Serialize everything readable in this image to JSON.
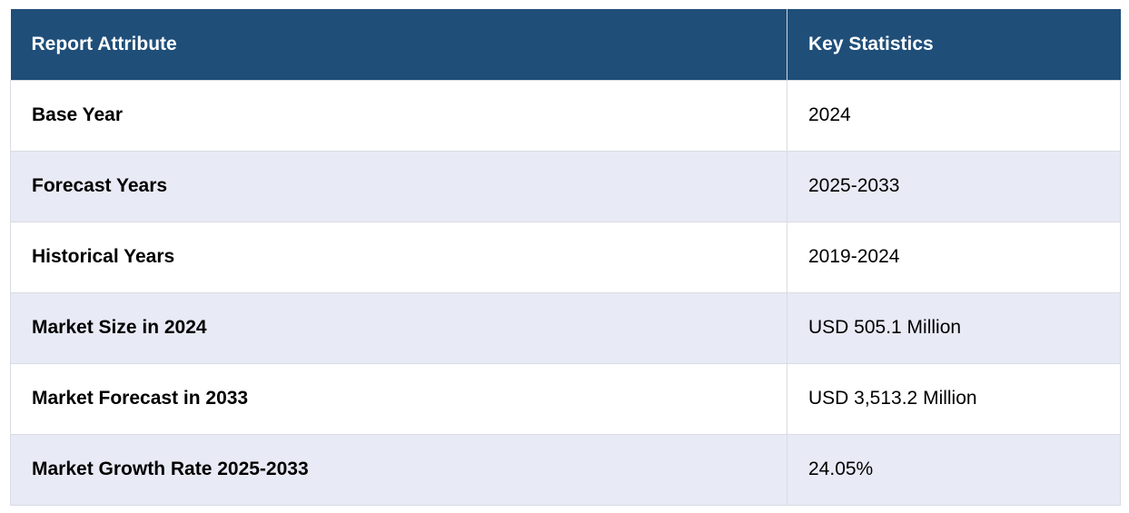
{
  "table": {
    "headers": {
      "attribute": "Report Attribute",
      "statistics": "Key Statistics"
    },
    "rows": [
      {
        "attribute": "Base Year",
        "value": "2024"
      },
      {
        "attribute": "Forecast Years",
        "value": "2025-2033"
      },
      {
        "attribute": "Historical Years",
        "value": "2019-2024"
      },
      {
        "attribute": "Market Size in 2024",
        "value": "USD 505.1 Million"
      },
      {
        "attribute": "Market Forecast in 2033",
        "value": "USD 3,513.2 Million"
      },
      {
        "attribute": "Market Growth Rate 2025-2033",
        "value": "24.05%"
      }
    ]
  },
  "colors": {
    "header_bg": "#1f4e79",
    "header_text": "#ffffff",
    "row_alt_bg": "#e8eaf5",
    "row_bg": "#ffffff"
  }
}
